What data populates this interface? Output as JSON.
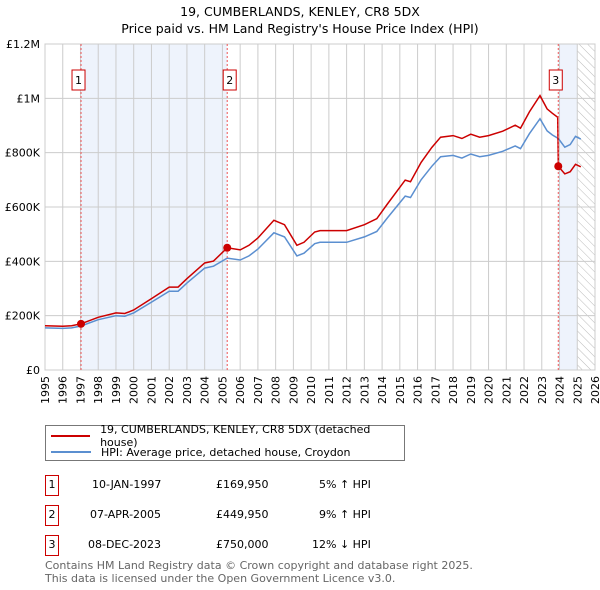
{
  "title_line1": "19, CUMBERLANDS, KENLEY, CR8 5DX",
  "title_line2": "Price paid vs. HM Land Registry's House Price Index (HPI)",
  "legend": {
    "red": "19, CUMBERLANDS, KENLEY, CR8 5DX (detached house)",
    "blue": "HPI: Average price, detached house, Croydon"
  },
  "sales": [
    {
      "num": "1",
      "date": "10-JAN-1997",
      "price": "£169,950",
      "hpi": "5% ↑ HPI"
    },
    {
      "num": "2",
      "date": "07-APR-2005",
      "price": "£449,950",
      "hpi": "9% ↑ HPI"
    },
    {
      "num": "3",
      "date": "08-DEC-2023",
      "price": "£750,000",
      "hpi": "12% ↓ HPI"
    }
  ],
  "footer_line1": "Contains HM Land Registry data © Crown copyright and database right 2025.",
  "footer_line2": "This data is licensed under the Open Government Licence v3.0.",
  "colors": {
    "red": "#cc0000",
    "blue": "#5b8fd0",
    "shade": "#eef3fc",
    "grid": "#cccccc"
  },
  "chart_data": {
    "type": "line",
    "xlim": [
      1995,
      2026
    ],
    "ylim": [
      0,
      1200000
    ],
    "yticks": [
      {
        "v": 0,
        "label": "£0"
      },
      {
        "v": 200000,
        "label": "£200K"
      },
      {
        "v": 400000,
        "label": "£400K"
      },
      {
        "v": 600000,
        "label": "£600K"
      },
      {
        "v": 800000,
        "label": "£800K"
      },
      {
        "v": 1000000,
        "label": "£1M"
      },
      {
        "v": 1200000,
        "label": "£1.2M"
      }
    ],
    "xticks": [
      "1995",
      "1996",
      "1997",
      "1998",
      "1999",
      "2000",
      "2001",
      "2002",
      "2003",
      "2004",
      "2005",
      "2006",
      "2007",
      "2008",
      "2009",
      "2010",
      "2011",
      "2012",
      "2013",
      "2014",
      "2015",
      "2016",
      "2017",
      "2018",
      "2019",
      "2020",
      "2021",
      "2022",
      "2023",
      "2024",
      "2025",
      "2026"
    ],
    "sale_points": [
      {
        "x": 1997.03,
        "y": 169950
      },
      {
        "x": 2005.27,
        "y": 449950
      },
      {
        "x": 2023.93,
        "y": 750000
      }
    ],
    "shaded_ranges": [
      [
        1997.03,
        2005.27
      ],
      [
        2023.93,
        2025.0
      ]
    ],
    "hatched_from": 2025.0,
    "series": [
      {
        "name": "HPI: Average price, detached house, Croydon",
        "color": "blue",
        "points": [
          [
            1995,
            155
          ],
          [
            1996,
            153
          ],
          [
            1996.5,
            155
          ],
          [
            1997.03,
            162
          ],
          [
            1998,
            185
          ],
          [
            1999,
            200
          ],
          [
            1999.5,
            198
          ],
          [
            2000,
            210
          ],
          [
            2001,
            250
          ],
          [
            2002,
            290
          ],
          [
            2002.5,
            290
          ],
          [
            2003,
            320
          ],
          [
            2004,
            375
          ],
          [
            2004.5,
            382
          ],
          [
            2005.27,
            412
          ],
          [
            2006,
            405
          ],
          [
            2006.5,
            420
          ],
          [
            2007,
            445
          ],
          [
            2007.9,
            505
          ],
          [
            2008.5,
            490
          ],
          [
            2009.2,
            420
          ],
          [
            2009.6,
            430
          ],
          [
            2010.2,
            465
          ],
          [
            2010.5,
            470
          ],
          [
            2011,
            470
          ],
          [
            2012,
            470
          ],
          [
            2013,
            490
          ],
          [
            2013.7,
            510
          ],
          [
            2014.3,
            560
          ],
          [
            2014.8,
            600
          ],
          [
            2015.3,
            640
          ],
          [
            2015.6,
            635
          ],
          [
            2016.2,
            700
          ],
          [
            2016.8,
            750
          ],
          [
            2017.3,
            785
          ],
          [
            2018,
            790
          ],
          [
            2018.5,
            780
          ],
          [
            2019,
            795
          ],
          [
            2019.5,
            785
          ],
          [
            2020,
            790
          ],
          [
            2020.8,
            805
          ],
          [
            2021.5,
            825
          ],
          [
            2021.8,
            815
          ],
          [
            2022.3,
            870
          ],
          [
            2022.9,
            925
          ],
          [
            2023.3,
            880
          ],
          [
            2023.6,
            865
          ],
          [
            2023.93,
            852
          ],
          [
            2024.3,
            820
          ],
          [
            2024.6,
            830
          ],
          [
            2024.9,
            860
          ],
          [
            2025.2,
            850
          ]
        ]
      },
      {
        "name": "19, CUMBERLANDS, KENLEY, CR8 5DX (detached house)",
        "color": "red",
        "points": [
          [
            1995,
            163
          ],
          [
            1996,
            161
          ],
          [
            1996.5,
            163
          ],
          [
            1997.03,
            170
          ],
          [
            1998,
            194
          ],
          [
            1999,
            210
          ],
          [
            1999.5,
            208
          ],
          [
            2000,
            221
          ],
          [
            2001,
            263
          ],
          [
            2002,
            305
          ],
          [
            2002.5,
            305
          ],
          [
            2003,
            336
          ],
          [
            2004,
            394
          ],
          [
            2004.5,
            401
          ],
          [
            2005.27,
            450
          ],
          [
            2006,
            442
          ],
          [
            2006.5,
            459
          ],
          [
            2007,
            486
          ],
          [
            2007.9,
            551
          ],
          [
            2008.5,
            535
          ],
          [
            2009.2,
            459
          ],
          [
            2009.6,
            470
          ],
          [
            2010.2,
            508
          ],
          [
            2010.5,
            513
          ],
          [
            2011,
            513
          ],
          [
            2012,
            513
          ],
          [
            2013,
            535
          ],
          [
            2013.7,
            557
          ],
          [
            2014.3,
            611
          ],
          [
            2014.8,
            655
          ],
          [
            2015.3,
            699
          ],
          [
            2015.6,
            693
          ],
          [
            2016.2,
            764
          ],
          [
            2016.8,
            819
          ],
          [
            2017.3,
            857
          ],
          [
            2018,
            863
          ],
          [
            2018.5,
            852
          ],
          [
            2019,
            868
          ],
          [
            2019.5,
            857
          ],
          [
            2020,
            863
          ],
          [
            2020.8,
            879
          ],
          [
            2021.5,
            901
          ],
          [
            2021.8,
            890
          ],
          [
            2022.3,
            950
          ],
          [
            2022.9,
            1010
          ],
          [
            2023.3,
            961
          ],
          [
            2023.6,
            945
          ],
          [
            2023.9,
            930
          ],
          [
            2023.93,
            750
          ],
          [
            2024.3,
            722
          ],
          [
            2024.6,
            730
          ],
          [
            2024.9,
            757
          ],
          [
            2025.2,
            748
          ]
        ]
      }
    ],
    "values_unit": "thousands GBP"
  }
}
